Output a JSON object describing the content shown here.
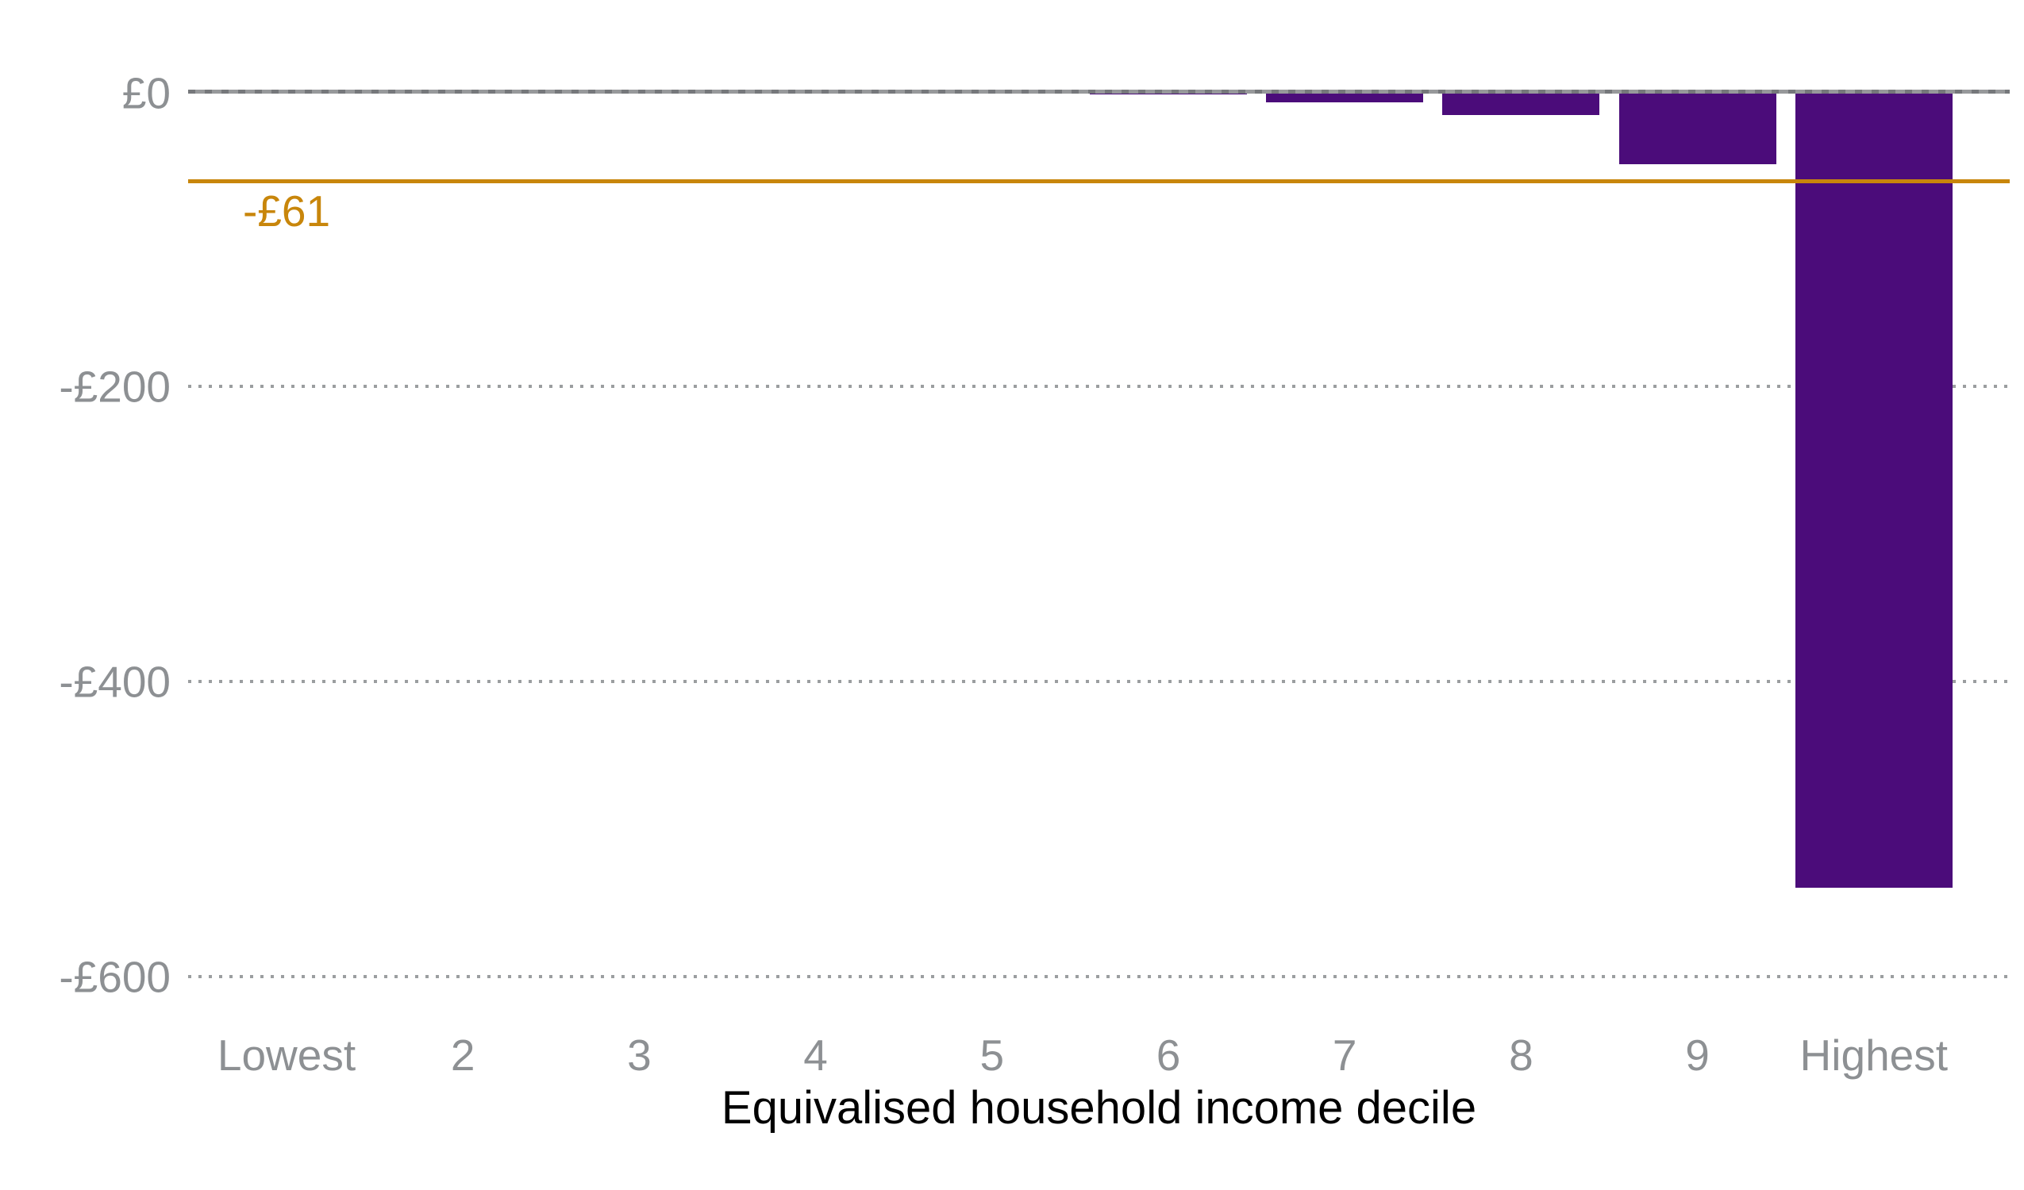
{
  "chart_data": {
    "type": "bar",
    "categories": [
      "Lowest",
      "2",
      "3",
      "4",
      "5",
      "6",
      "7",
      "8",
      "9",
      "Highest"
    ],
    "values": [
      0,
      0,
      0,
      0,
      -1,
      -2,
      -7,
      -16,
      -49,
      -540
    ],
    "xlabel": "Equivalised household income decile",
    "ylabel": "",
    "y_ticks": [
      {
        "label": "£0",
        "value": 0
      },
      {
        "label": "-£200",
        "value": -200
      },
      {
        "label": "-£400",
        "value": -400
      },
      {
        "label": "-£600",
        "value": -600
      }
    ],
    "ylim": [
      -650,
      0
    ],
    "grid": "dotted horizontal lines at negative ticks, solid grey line at zero",
    "legend_position": "none",
    "average_line": {
      "value": -61,
      "label": "-£61"
    },
    "colors": {
      "bar": "#4B0C7A",
      "average": "#C8860B",
      "axis": "#97999B",
      "grid": "#9B9EA0",
      "tick_labels": "#8D9093",
      "axis_title": "#000000",
      "background": "#FFFFFF"
    }
  }
}
